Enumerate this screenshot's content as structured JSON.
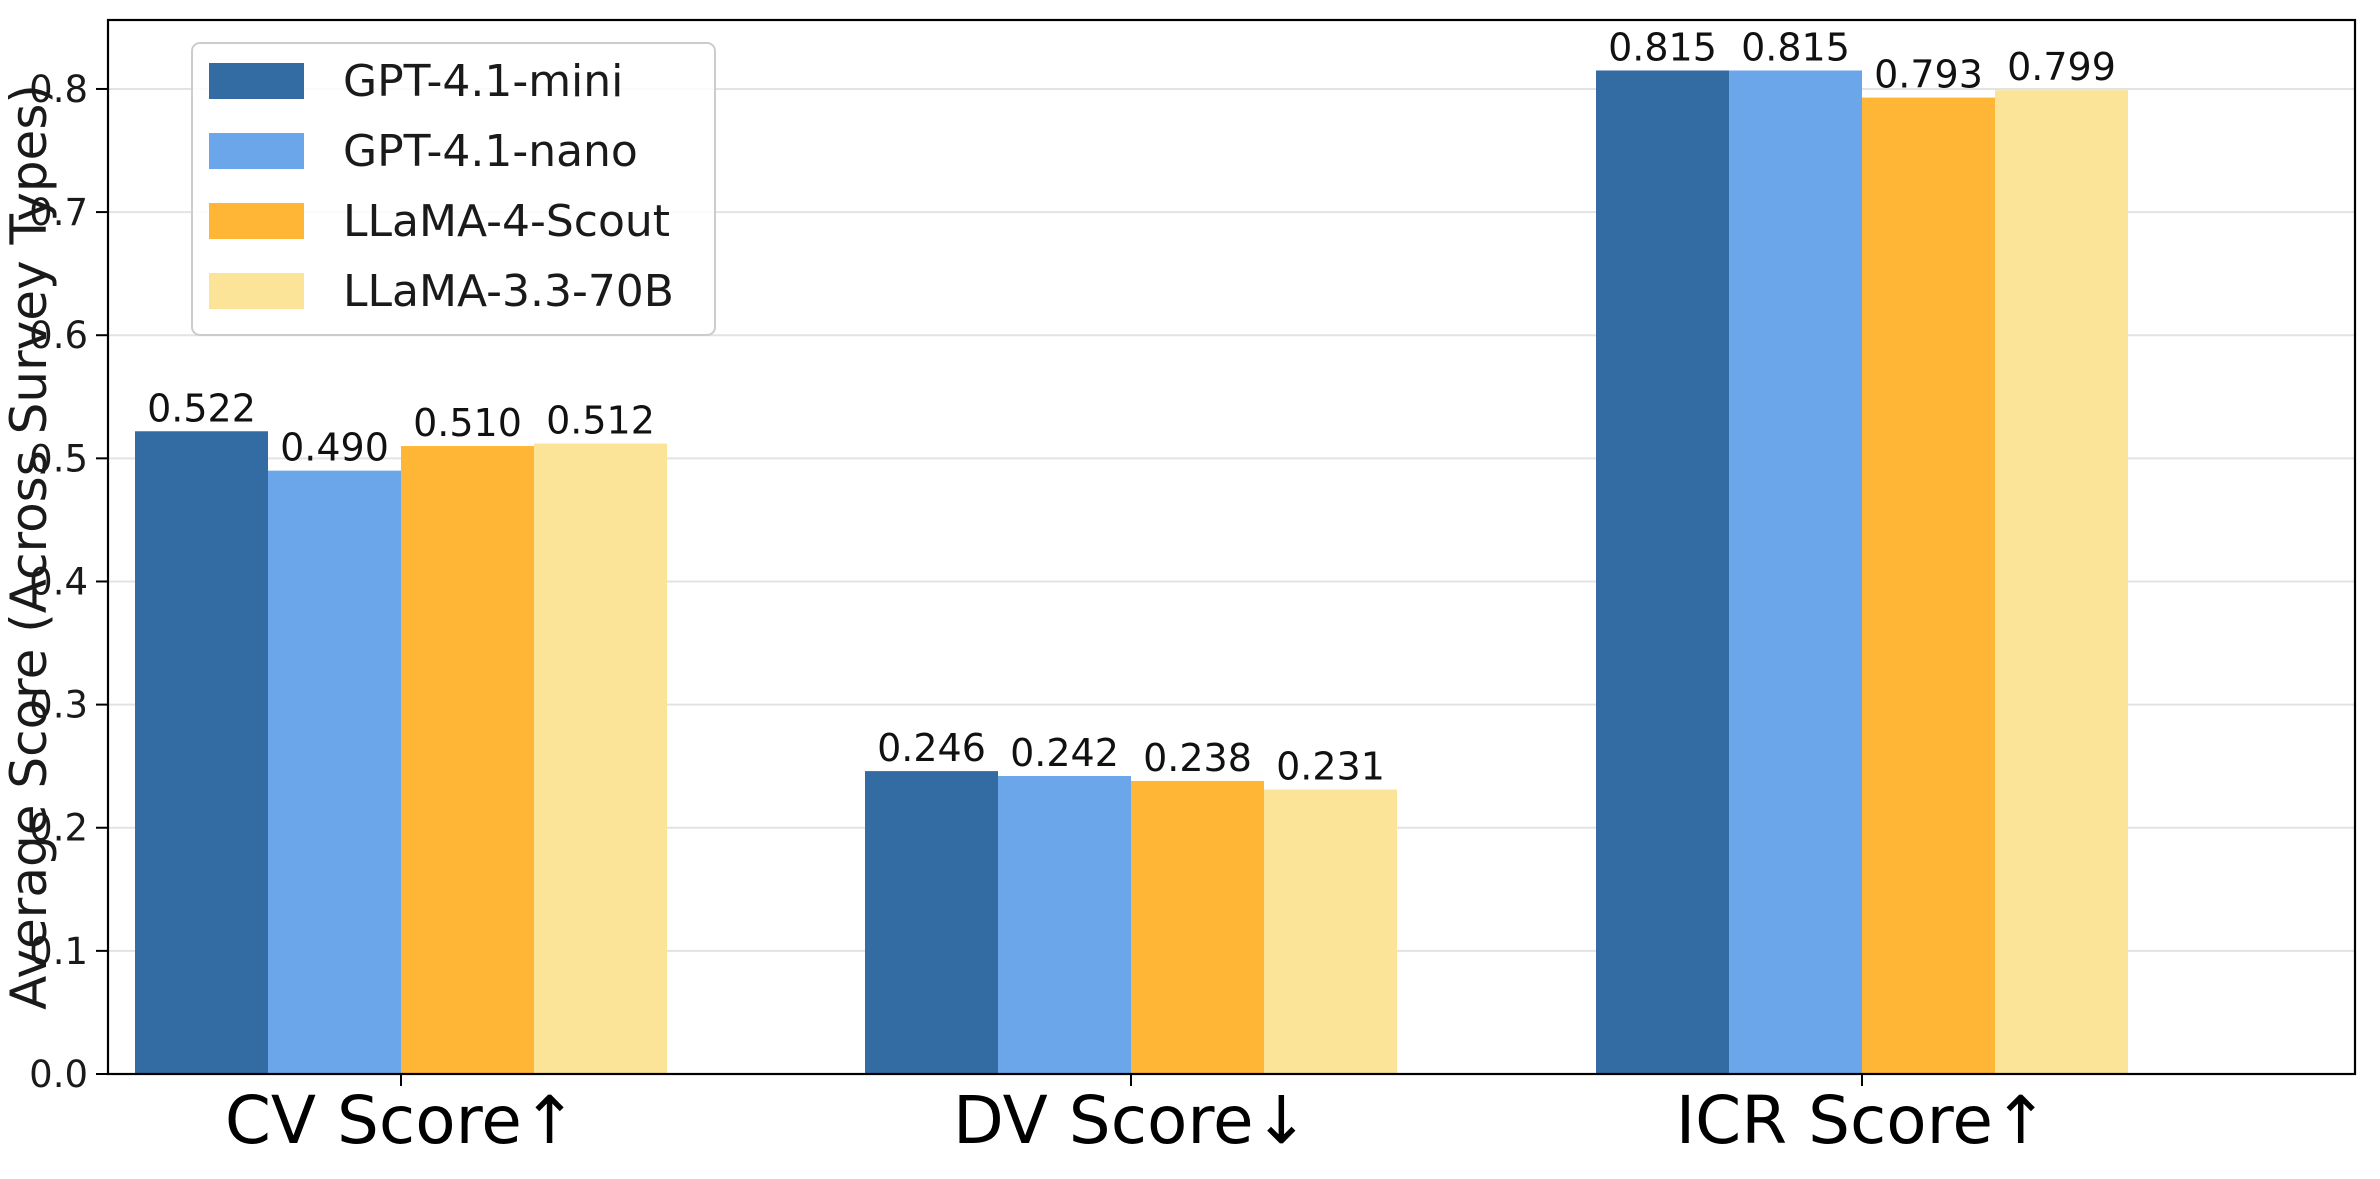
{
  "chart_data": {
    "type": "bar",
    "categories": [
      "CV Score↑",
      "DV Score↓",
      "ICR Score↑"
    ],
    "series": [
      {
        "name": "GPT-4.1-mini",
        "color": "#336BA3",
        "values": [
          0.522,
          0.246,
          0.815
        ],
        "labels": [
          "0.522",
          "0.246",
          "0.815"
        ]
      },
      {
        "name": "GPT-4.1-nano",
        "color": "#6AA6E9",
        "values": [
          0.49,
          0.242,
          0.815
        ],
        "labels": [
          "0.490",
          "0.242",
          "0.815"
        ]
      },
      {
        "name": "LLaMA-4-Scout",
        "color": "#FFB536",
        "values": [
          0.51,
          0.238,
          0.793
        ],
        "labels": [
          "0.510",
          "0.238",
          "0.793"
        ]
      },
      {
        "name": "LLaMA-3.3-70B",
        "color": "#FBE398",
        "values": [
          0.512,
          0.231,
          0.799
        ],
        "labels": [
          "0.512",
          "0.231",
          "0.799"
        ]
      }
    ],
    "title": "",
    "xlabel": "",
    "ylabel": "Average Score (Across Survey Types)",
    "ylim": [
      0,
      0.856
    ],
    "yticks": [
      "0.0",
      "0.1",
      "0.2",
      "0.3",
      "0.4",
      "0.5",
      "0.6",
      "0.7",
      "0.8"
    ],
    "grid": "horizontal",
    "legend_position": "top-left"
  }
}
